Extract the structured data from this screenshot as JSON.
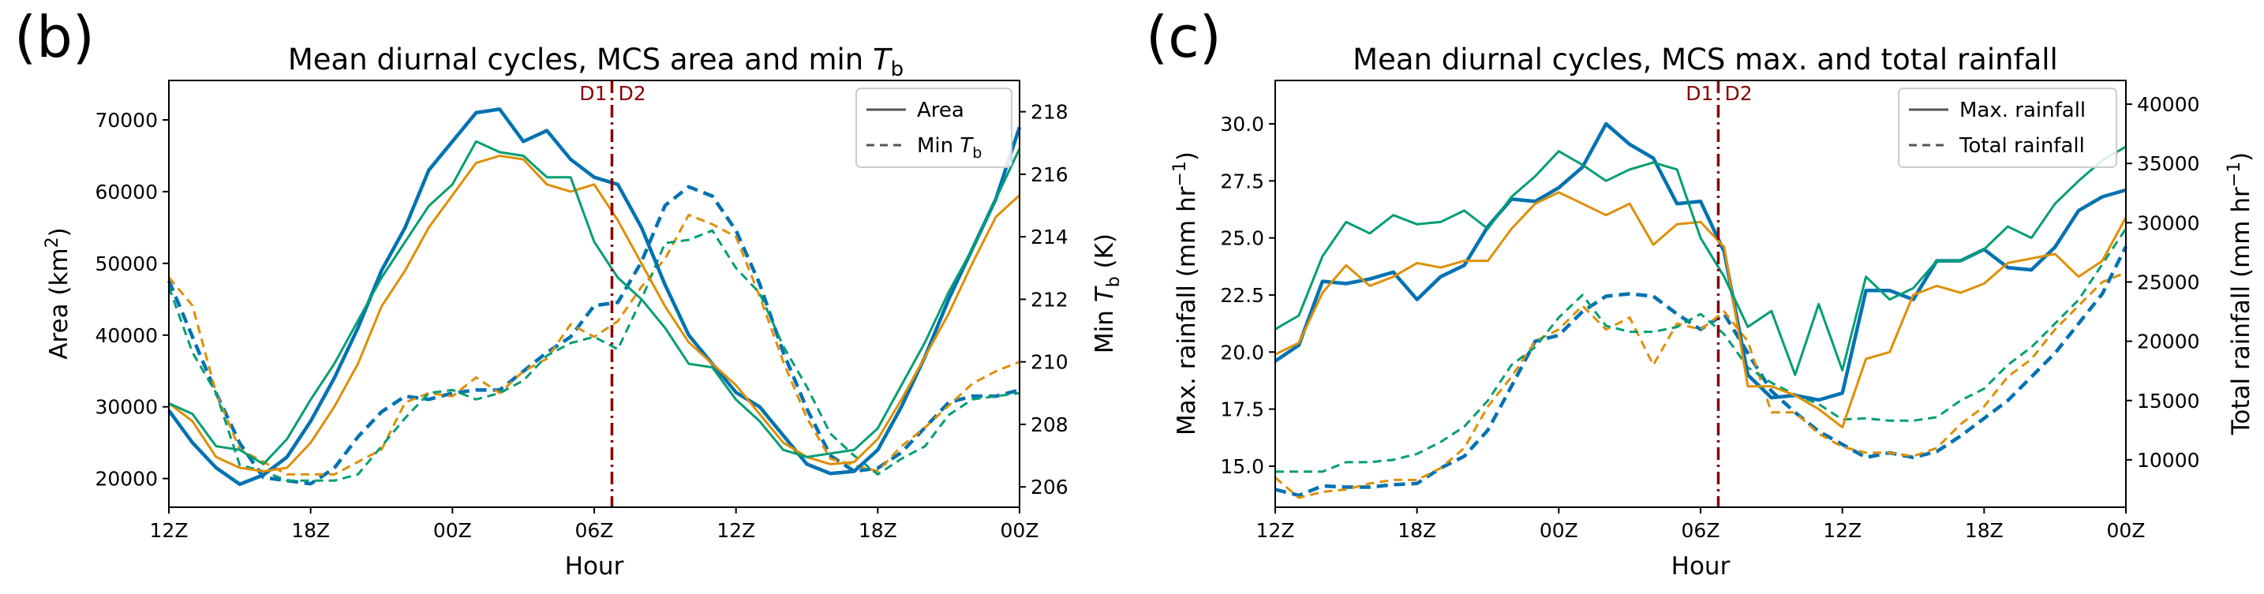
{
  "colors": {
    "blue": "#0072b2",
    "orange": "#de8f05",
    "green": "#029e73",
    "dline": "#8b0000",
    "legend_gray": "#555555"
  },
  "chart_data": [
    {
      "type": "line",
      "panel_label": "(b)",
      "title_prefix": "Mean diurnal cycles, MCS area and min ",
      "title_sym": "T",
      "title_sub": "b",
      "xlabel": "Hour",
      "xticks": [
        "12Z",
        "18Z",
        "00Z",
        "06Z",
        "12Z",
        "18Z",
        "00Z"
      ],
      "xlim": [
        0,
        36
      ],
      "ylabel_left_prefix": "Area (km",
      "ylabel_left_sup": "2",
      "ylabel_left_suffix": ")",
      "ylabel_right_prefix": "Min ",
      "ylabel_right_sym": "T",
      "ylabel_right_sub": "b",
      "ylabel_right_suffix": " (K)",
      "ylim_left": [
        16000,
        75500
      ],
      "ylim_right": [
        205.35,
        219.0
      ],
      "yticks_left": [
        "20000",
        "30000",
        "40000",
        "50000",
        "60000",
        "70000"
      ],
      "yticks_right": [
        "206",
        "208",
        "210",
        "212",
        "214",
        "216",
        "218"
      ],
      "divider_x": 18.75,
      "divider_left_label": "D1",
      "divider_right_label": "D2",
      "legend": {
        "solid": "Area",
        "dashed_prefix": "Min ",
        "dashed_sym": "T",
        "dashed_sub": "b"
      },
      "x": [
        0,
        1,
        2,
        3,
        4,
        5,
        6,
        7,
        8,
        9,
        10,
        11,
        12,
        13,
        14,
        15,
        16,
        17,
        18,
        19,
        20,
        21,
        22,
        23,
        24,
        25,
        26,
        27,
        28,
        29,
        30,
        31,
        32,
        33,
        34,
        35,
        36
      ],
      "series_left": [
        {
          "name": "Area blue",
          "color": "blue",
          "width": 4.5,
          "values": [
            29500,
            25000,
            21500,
            19200,
            20500,
            23000,
            28000,
            34000,
            41000,
            49000,
            55000,
            63000,
            67000,
            71000,
            71500,
            67000,
            68500,
            64500,
            62000,
            61000,
            55000,
            47000,
            40000,
            36000,
            32000,
            30000,
            26000,
            22000,
            20700,
            21000,
            24000,
            30000,
            37000,
            45000,
            52000,
            59000,
            69000
          ]
        },
        {
          "name": "Area orange",
          "color": "orange",
          "width": 3,
          "values": [
            30500,
            28000,
            23000,
            21500,
            21000,
            21500,
            25000,
            30000,
            36000,
            44000,
            49000,
            55000,
            59500,
            64000,
            65000,
            64500,
            61000,
            60000,
            61000,
            56000,
            50000,
            44000,
            39000,
            36000,
            33000,
            29000,
            25000,
            23000,
            22000,
            22300,
            25500,
            31000,
            37000,
            43000,
            50000,
            56500,
            59500
          ]
        },
        {
          "name": "Area green",
          "color": "green",
          "width": 3,
          "values": [
            30500,
            29000,
            24500,
            24000,
            22000,
            25500,
            31000,
            36000,
            42000,
            48000,
            53000,
            58000,
            61000,
            67000,
            65500,
            65000,
            62000,
            62000,
            53000,
            48000,
            45000,
            41000,
            36000,
            35500,
            31000,
            28000,
            24000,
            23000,
            23500,
            24000,
            27000,
            33000,
            39000,
            46000,
            52000,
            59000,
            66000
          ]
        }
      ],
      "series_right": [
        {
          "name": "Min Tb blue",
          "color": "blue",
          "width": 4.5,
          "values": [
            212.6,
            210.8,
            209.0,
            207.4,
            206.3,
            206.2,
            206.1,
            206.6,
            207.6,
            208.4,
            208.9,
            208.8,
            209.0,
            209.1,
            209.1,
            209.7,
            210.3,
            210.8,
            211.8,
            211.9,
            213.2,
            215.0,
            215.6,
            215.3,
            214.2,
            212.5,
            210.3,
            208.5,
            207.0,
            206.5,
            206.6,
            207.1,
            207.9,
            208.7,
            208.9,
            208.9,
            209.1
          ]
        },
        {
          "name": "Min Tb orange",
          "color": "orange",
          "width": 3,
          "values": [
            212.7,
            211.8,
            209.0,
            207.2,
            206.8,
            206.4,
            206.4,
            206.4,
            206.8,
            207.2,
            208.7,
            209.0,
            208.9,
            209.5,
            209.0,
            209.7,
            210.1,
            211.2,
            210.8,
            211.3,
            212.4,
            213.3,
            214.7,
            214.4,
            214.0,
            212.1,
            210.0,
            208.2,
            206.9,
            206.7,
            206.5,
            207.3,
            207.9,
            208.6,
            209.3,
            209.7,
            210.0
          ]
        },
        {
          "name": "Min Tb green",
          "color": "green",
          "width": 3,
          "values": [
            212.4,
            210.3,
            209.0,
            206.7,
            206.5,
            206.2,
            206.2,
            206.2,
            206.4,
            207.3,
            208.2,
            209.0,
            209.1,
            208.8,
            209.0,
            209.4,
            210.2,
            210.6,
            210.8,
            210.4,
            212.0,
            213.8,
            213.9,
            214.2,
            213.0,
            212.2,
            210.5,
            209.2,
            207.7,
            207.0,
            206.4,
            206.9,
            207.3,
            208.3,
            208.8,
            208.9,
            209.0
          ]
        }
      ]
    },
    {
      "type": "line",
      "panel_label": "(c)",
      "title": "Mean diurnal cycles, MCS max. and total rainfall",
      "xlabel": "Hour",
      "xticks": [
        "12Z",
        "18Z",
        "00Z",
        "06Z",
        "12Z",
        "18Z",
        "00Z"
      ],
      "xlim": [
        0,
        36
      ],
      "ylabel_left_prefix": "Max. rainfall (mm hr",
      "ylabel_left_sup": "−1",
      "ylabel_left_suffix": ")",
      "ylabel_right_prefix": "Total rainfall (mm hr",
      "ylabel_right_sup": "−1",
      "ylabel_right_suffix": ")",
      "ylim_left": [
        13.2,
        31.9
      ],
      "ylim_right": [
        6000,
        42000
      ],
      "yticks_left": [
        "15.0",
        "17.5",
        "20.0",
        "22.5",
        "25.0",
        "27.5",
        "30.0"
      ],
      "yticks_right": [
        "10000",
        "15000",
        "20000",
        "25000",
        "30000",
        "35000",
        "40000"
      ],
      "divider_x": 18.75,
      "divider_left_label": "D1",
      "divider_right_label": "D2",
      "legend": {
        "solid": "Max. rainfall",
        "dashed": "Total rainfall"
      },
      "x": [
        0,
        1,
        2,
        3,
        4,
        5,
        6,
        7,
        8,
        9,
        10,
        11,
        12,
        13,
        14,
        15,
        16,
        17,
        18,
        19,
        20,
        21,
        22,
        23,
        24,
        25,
        26,
        27,
        28,
        29,
        30,
        31,
        32,
        33,
        34,
        35,
        36
      ],
      "series_left": [
        {
          "name": "Max rainfall blue",
          "color": "blue",
          "width": 4.5,
          "values": [
            19.6,
            20.3,
            23.1,
            23.0,
            23.2,
            23.5,
            22.3,
            23.3,
            23.8,
            25.5,
            26.7,
            26.6,
            27.2,
            28.1,
            30.0,
            29.1,
            28.5,
            26.5,
            26.6,
            24.4,
            19.0,
            18.0,
            18.1,
            17.9,
            18.2,
            22.7,
            22.7,
            22.3,
            24.0,
            24.0,
            24.5,
            23.7,
            23.6,
            24.6,
            26.2,
            26.8,
            27.1
          ]
        },
        {
          "name": "Max rainfall orange",
          "color": "orange",
          "width": 3,
          "values": [
            19.9,
            20.4,
            22.6,
            23.8,
            22.9,
            23.3,
            23.9,
            23.7,
            24.0,
            24.0,
            25.4,
            26.5,
            27.0,
            26.5,
            26.0,
            26.5,
            24.7,
            25.6,
            25.7,
            24.6,
            18.5,
            18.5,
            18.1,
            17.5,
            16.7,
            19.7,
            20.0,
            22.5,
            22.9,
            22.6,
            23.0,
            23.9,
            24.1,
            24.3,
            23.3,
            24.0,
            25.9
          ]
        },
        {
          "name": "Max rainfall green",
          "color": "green",
          "width": 3,
          "values": [
            21.0,
            21.6,
            24.2,
            25.7,
            25.2,
            26.0,
            25.6,
            25.7,
            26.2,
            25.4,
            26.8,
            27.7,
            28.8,
            28.2,
            27.5,
            28.0,
            28.3,
            28.0,
            25.0,
            23.3,
            21.1,
            21.8,
            19.0,
            22.1,
            19.2,
            23.3,
            22.3,
            22.8,
            24.0,
            24.0,
            24.5,
            25.5,
            25.0,
            26.5,
            27.5,
            28.4,
            29.0
          ]
        }
      ],
      "series_right": [
        {
          "name": "Total rainfall blue",
          "color": "blue",
          "width": 4.5,
          "values": [
            7500,
            7000,
            7800,
            7700,
            7700,
            7900,
            8000,
            9300,
            10300,
            12500,
            16200,
            20000,
            20500,
            22500,
            23800,
            24000,
            23800,
            22300,
            21000,
            22300,
            19000,
            15800,
            14000,
            12400,
            11300,
            10200,
            10600,
            10200,
            10700,
            12000,
            13500,
            15000,
            17000,
            19000,
            21500,
            24000,
            28000
          ]
        },
        {
          "name": "Total rainfall orange",
          "color": "orange",
          "width": 3,
          "values": [
            8500,
            6800,
            7300,
            7500,
            8000,
            8300,
            8300,
            9300,
            11000,
            14500,
            17000,
            20000,
            21000,
            23000,
            21000,
            22000,
            18000,
            21500,
            21000,
            22500,
            20000,
            14000,
            14000,
            12200,
            11100,
            10600,
            10600,
            10300,
            11000,
            13000,
            14500,
            17000,
            18500,
            21000,
            23000,
            25000,
            25800
          ]
        },
        {
          "name": "Total rainfall green",
          "color": "green",
          "width": 3,
          "values": [
            9000,
            9000,
            9000,
            9800,
            9800,
            10000,
            10500,
            11500,
            12800,
            15000,
            18000,
            19500,
            22000,
            23900,
            21300,
            20800,
            20800,
            21200,
            22300,
            20600,
            17800,
            16500,
            15500,
            14700,
            13400,
            13500,
            13300,
            13300,
            13600,
            15000,
            16000,
            18000,
            19500,
            21500,
            23500,
            26500,
            29500
          ]
        }
      ]
    }
  ]
}
